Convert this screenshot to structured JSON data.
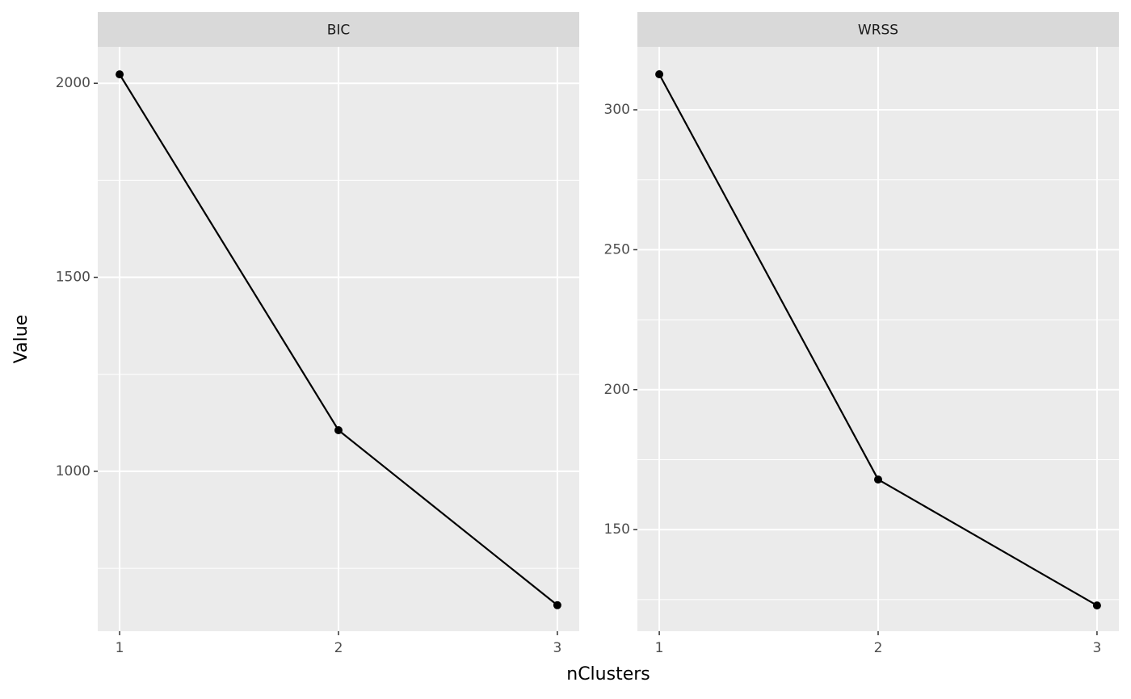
{
  "chart_data": {
    "type": "line",
    "x_label": "nClusters",
    "y_label": "Value",
    "color": "#000000",
    "grid": true,
    "facets": [
      {
        "title": "BIC",
        "x": [
          1,
          2,
          3
        ],
        "values": [
          2023,
          1106,
          655
        ],
        "xlim": [
          0.9,
          3.1
        ],
        "xticks": [
          1,
          2,
          3
        ],
        "ylim": [
          588,
          2094
        ],
        "yticks": [
          1000,
          1500,
          2000
        ]
      },
      {
        "title": "WRSS",
        "x": [
          1,
          2,
          3
        ],
        "values": [
          312.7,
          167.9,
          122.9
        ],
        "xlim": [
          0.9,
          3.1
        ],
        "xticks": [
          1,
          2,
          3
        ],
        "ylim": [
          113.7,
          322.5
        ],
        "yticks": [
          150,
          200,
          250,
          300
        ]
      }
    ]
  }
}
